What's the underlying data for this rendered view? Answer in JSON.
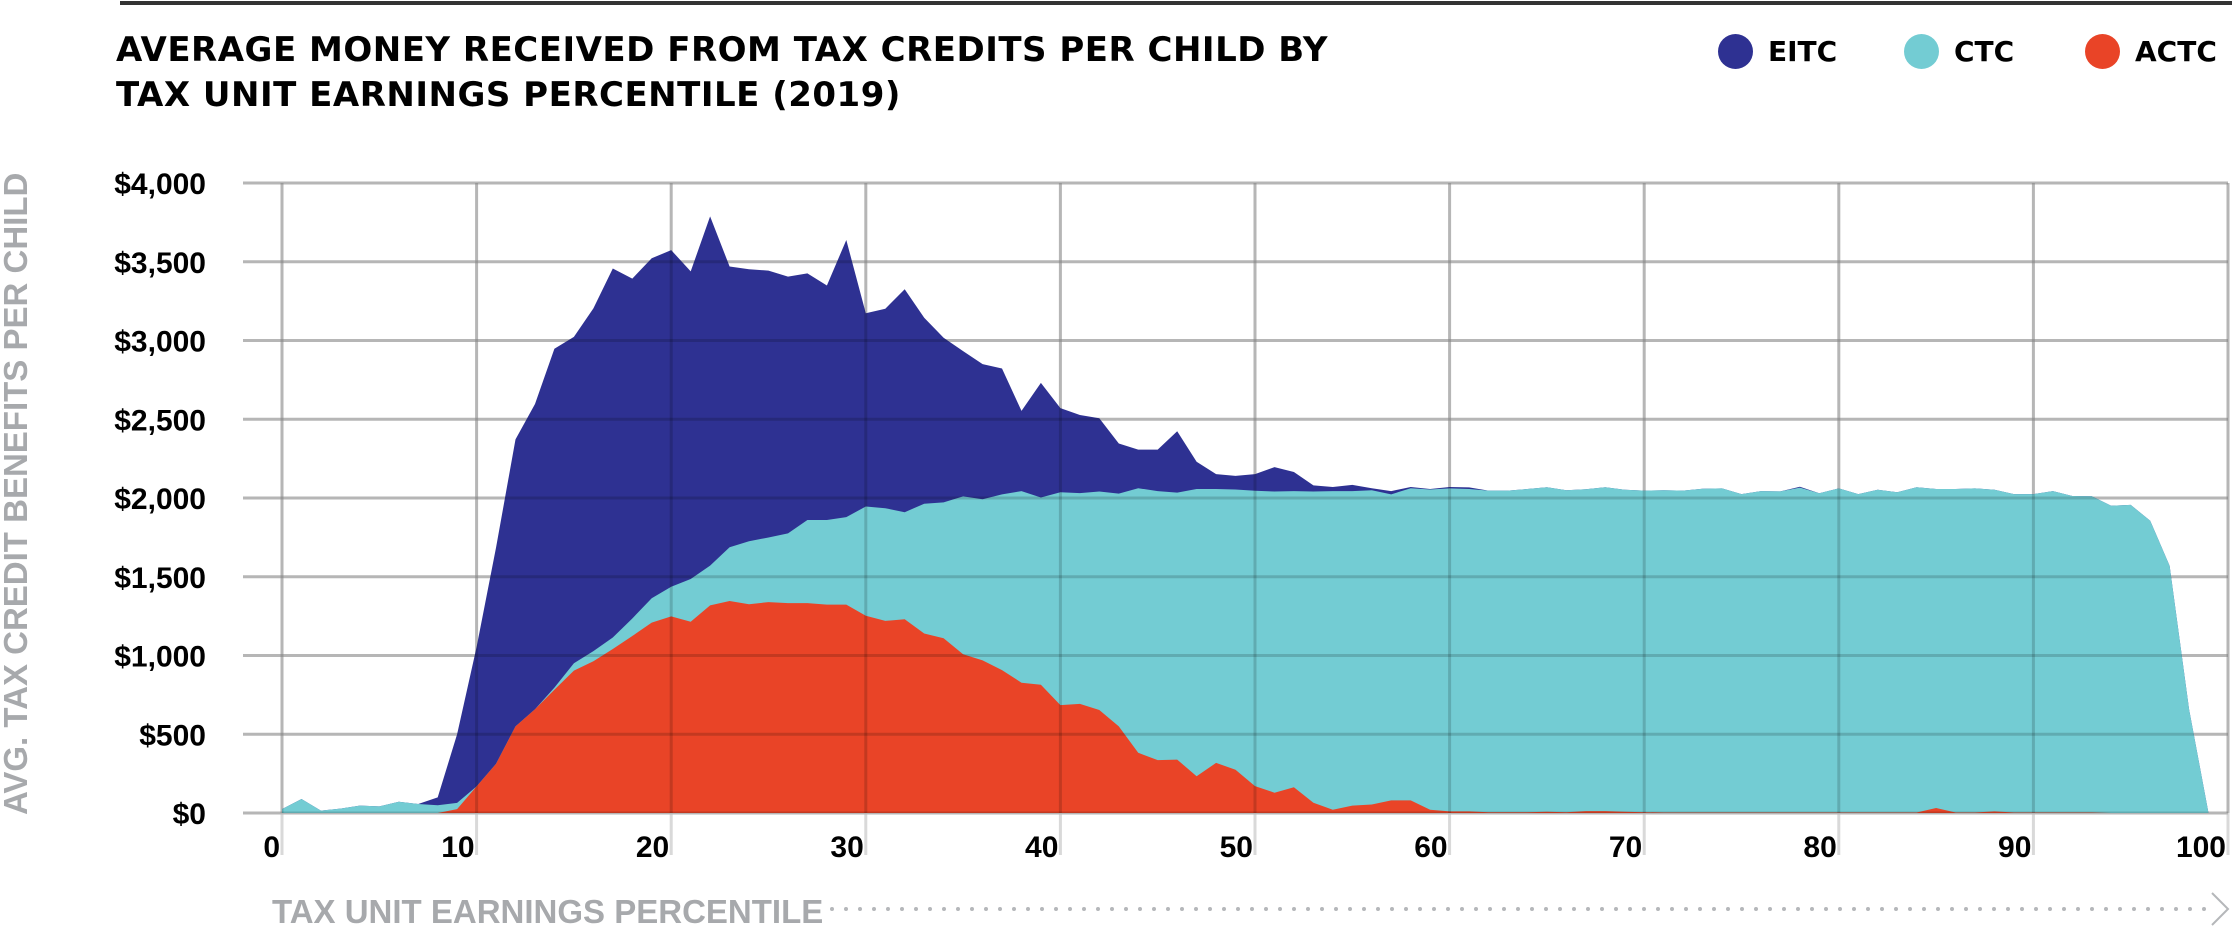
{
  "header": {
    "title_line1": "AVERAGE MONEY RECEIVED FROM TAX CREDITS PER CHILD BY",
    "title_line2": "TAX UNIT EARNINGS PERCENTILE (2019)"
  },
  "legend": [
    {
      "label": "EITC",
      "color": "#2E3192"
    },
    {
      "label": "CTC",
      "color": "#73CCD3"
    },
    {
      "label": "ACTC",
      "color": "#E94427"
    }
  ],
  "chart_data": {
    "type": "area",
    "title": "AVERAGE MONEY RECEIVED FROM TAX CREDITS PER CHILD BY TAX UNIT EARNINGS PERCENTILE (2019)",
    "xlabel": "TAX UNIT EARNINGS PERCENTILE",
    "ylabel": "AVG. TAX CREDIT BENEFITS PER CHILD",
    "xlim": [
      0,
      100
    ],
    "ylim": [
      0,
      4000
    ],
    "x_ticks": [
      0,
      10,
      20,
      30,
      40,
      50,
      60,
      70,
      80,
      90,
      100
    ],
    "x_tick_labels": [
      "0",
      "10",
      "20",
      "30",
      "40",
      "50",
      "60",
      "70",
      "80",
      "90",
      "100"
    ],
    "y_ticks": [
      0,
      500,
      1000,
      1500,
      2000,
      2500,
      3000,
      3500,
      4000
    ],
    "y_tick_labels": [
      "$0",
      "$500",
      "$1,000",
      "$1,500",
      "$2,000",
      "$2,500",
      "$3,000",
      "$3,500",
      "$4,000"
    ],
    "grid": true,
    "legend_position": "top-right",
    "layering": "overlapping cumulative areas: EITC outline is the combined total, CTC outline drawn over it, ACTC drawn on top",
    "x": [
      0,
      1,
      2,
      3,
      4,
      5,
      6,
      7,
      8,
      9,
      10,
      11,
      12,
      13,
      14,
      15,
      16,
      17,
      18,
      19,
      20,
      21,
      22,
      23,
      24,
      25,
      26,
      27,
      28,
      29,
      30,
      31,
      32,
      33,
      34,
      35,
      36,
      37,
      38,
      39,
      40,
      41,
      42,
      43,
      44,
      45,
      46,
      47,
      48,
      49,
      50,
      51,
      52,
      53,
      54,
      55,
      56,
      57,
      58,
      59,
      60,
      61,
      62,
      63,
      64,
      65,
      66,
      67,
      68,
      69,
      70,
      71,
      72,
      73,
      74,
      75,
      76,
      77,
      78,
      79,
      80,
      81,
      82,
      83,
      84,
      85,
      86,
      87,
      88,
      89,
      90,
      91,
      92,
      93,
      94,
      95,
      96,
      97,
      98,
      99
    ],
    "series": [
      {
        "name": "EITC",
        "color": "#2E3192",
        "values": [
          25,
          89,
          15,
          28,
          47,
          42,
          72,
          57,
          99,
          500,
          1054,
          1687,
          2372,
          2597,
          2948,
          3023,
          3204,
          3457,
          3393,
          3522,
          3574,
          3439,
          3788,
          3470,
          3452,
          3444,
          3406,
          3426,
          3349,
          3638,
          3173,
          3202,
          3326,
          3145,
          3018,
          2933,
          2850,
          2822,
          2553,
          2731,
          2571,
          2527,
          2506,
          2346,
          2307,
          2307,
          2424,
          2230,
          2152,
          2140,
          2152,
          2196,
          2165,
          2080,
          2070,
          2083,
          2062,
          2044,
          2070,
          2057,
          2070,
          2067,
          2047,
          2047,
          2057,
          2068,
          2049,
          2055,
          2068,
          2053,
          2047,
          2049,
          2047,
          2059,
          2061,
          2025,
          2044,
          2042,
          2072,
          2030,
          2061,
          2025,
          2053,
          2036,
          2068,
          2057,
          2057,
          2061,
          2053,
          2025,
          2025,
          2044,
          2013,
          2011,
          1951,
          1956,
          1856,
          1570,
          657,
          0
        ]
      },
      {
        "name": "CTC",
        "color": "#73CCD3",
        "values": [
          25,
          89,
          15,
          28,
          47,
          42,
          72,
          57,
          49,
          64,
          169,
          313,
          550,
          659,
          796,
          951,
          1028,
          1114,
          1235,
          1364,
          1437,
          1486,
          1571,
          1687,
          1726,
          1749,
          1775,
          1860,
          1860,
          1879,
          1946,
          1935,
          1910,
          1964,
          1972,
          2010,
          1992,
          2023,
          2044,
          2003,
          2036,
          2031,
          2041,
          2028,
          2062,
          2044,
          2034,
          2057,
          2057,
          2054,
          2046,
          2041,
          2044,
          2041,
          2044,
          2044,
          2049,
          2023,
          2062,
          2054,
          2061,
          2057,
          2047,
          2047,
          2057,
          2068,
          2049,
          2055,
          2068,
          2053,
          2047,
          2049,
          2047,
          2059,
          2061,
          2025,
          2044,
          2042,
          2066,
          2030,
          2061,
          2025,
          2053,
          2036,
          2068,
          2057,
          2057,
          2061,
          2053,
          2025,
          2025,
          2044,
          2013,
          2011,
          1951,
          1956,
          1856,
          1570,
          657,
          0
        ]
      },
      {
        "name": "ACTC",
        "color": "#E94427",
        "values": [
          0,
          0,
          0,
          0,
          0,
          0,
          0,
          0,
          0,
          25,
          169,
          313,
          550,
          659,
          783,
          904,
          964,
          1041,
          1124,
          1209,
          1248,
          1214,
          1318,
          1346,
          1326,
          1339,
          1333,
          1333,
          1323,
          1323,
          1253,
          1220,
          1230,
          1140,
          1109,
          1008,
          969,
          907,
          827,
          814,
          685,
          693,
          654,
          550,
          382,
          336,
          339,
          233,
          318,
          274,
          171,
          129,
          163,
          65,
          21,
          47,
          54,
          80,
          80,
          21,
          10,
          10,
          5,
          5,
          5,
          8,
          5,
          12,
          12,
          8,
          5,
          3,
          3,
          3,
          3,
          3,
          3,
          3,
          3,
          3,
          3,
          3,
          3,
          3,
          3,
          32,
          3,
          3,
          10,
          3,
          3,
          3,
          3,
          3,
          0,
          0,
          0,
          0,
          0,
          0
        ]
      }
    ]
  },
  "axis_text": {
    "ylabel": "AVG. TAX CREDIT BENEFITS PER CHILD",
    "xlabel": "TAX UNIT EARNINGS PERCENTILE"
  }
}
